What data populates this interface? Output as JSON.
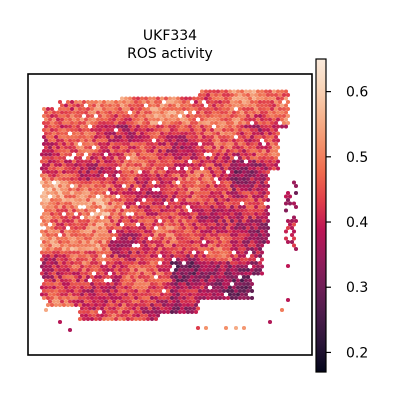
{
  "chart_data": {
    "type": "heatmap",
    "title_line1": "UKF334",
    "title_line2": "ROS activity",
    "xlabel": "",
    "ylabel": "",
    "grid": false,
    "colormap": "rocket",
    "colorbar": {
      "range": [
        0.17,
        0.65
      ],
      "ticks": [
        0.2,
        0.3,
        0.4,
        0.5,
        0.6
      ],
      "tick_labels": [
        "0.2",
        "0.3",
        "0.4",
        "0.5",
        "0.6"
      ],
      "placement": "right"
    },
    "color_stops": [
      "#03051a",
      "#2a1638",
      "#4c1d4b",
      "#701f57",
      "#961c5b",
      "#bd1655",
      "#e03e4a",
      "#ef6a4e",
      "#f3916b",
      "#f6b48f",
      "#f8d5b9",
      "#faebdd"
    ],
    "missing_spot_color": "#000000"
  }
}
